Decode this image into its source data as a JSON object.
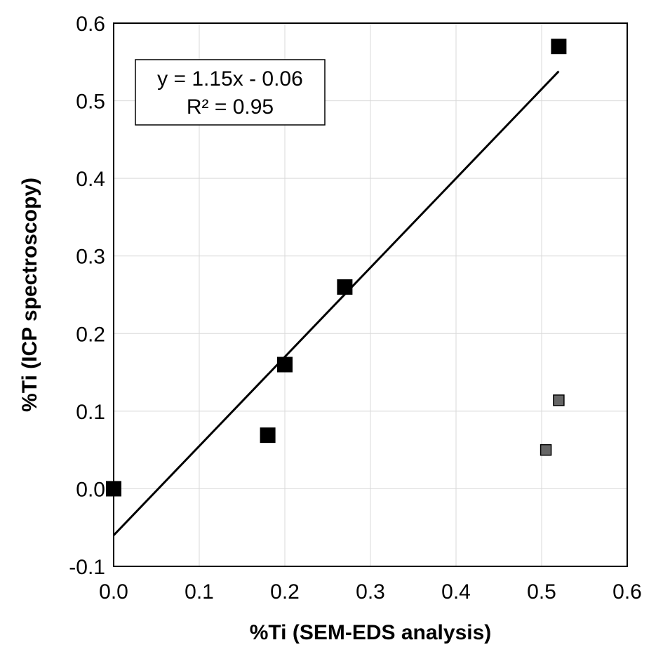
{
  "chart_data": {
    "type": "scatter",
    "title": "",
    "xlabel": "%Ti  (SEM-EDS analysis)",
    "ylabel": "%Ti  (ICP spectroscopy)",
    "xlim": [
      0.0,
      0.6
    ],
    "ylim": [
      -0.1,
      0.6
    ],
    "x_ticks": [
      "0.0",
      "0.1",
      "0.2",
      "0.3",
      "0.4",
      "0.5",
      "0.6"
    ],
    "y_ticks": [
      "-0.1",
      "0.0",
      "0.1",
      "0.2",
      "0.3",
      "0.4",
      "0.5",
      "0.6"
    ],
    "grid": true,
    "series": [
      {
        "color": "#000000",
        "marker": "square",
        "points": [
          {
            "x": 0.0,
            "y": 0.0
          },
          {
            "x": 0.18,
            "y": 0.069
          },
          {
            "x": 0.2,
            "y": 0.16
          },
          {
            "x": 0.27,
            "y": 0.26
          },
          {
            "x": 0.52,
            "y": 0.57
          }
        ]
      },
      {
        "color": "#666666",
        "marker": "square",
        "points": [
          {
            "x": 0.505,
            "y": 0.05
          },
          {
            "x": 0.52,
            "y": 0.114
          }
        ]
      }
    ],
    "trendline": {
      "slope": 1.15,
      "intercept": -0.06,
      "x_range": [
        0.0,
        0.52
      ],
      "equation_text": "y = 1.15x - 0.06",
      "r2_text": "R² = 0.95"
    }
  }
}
